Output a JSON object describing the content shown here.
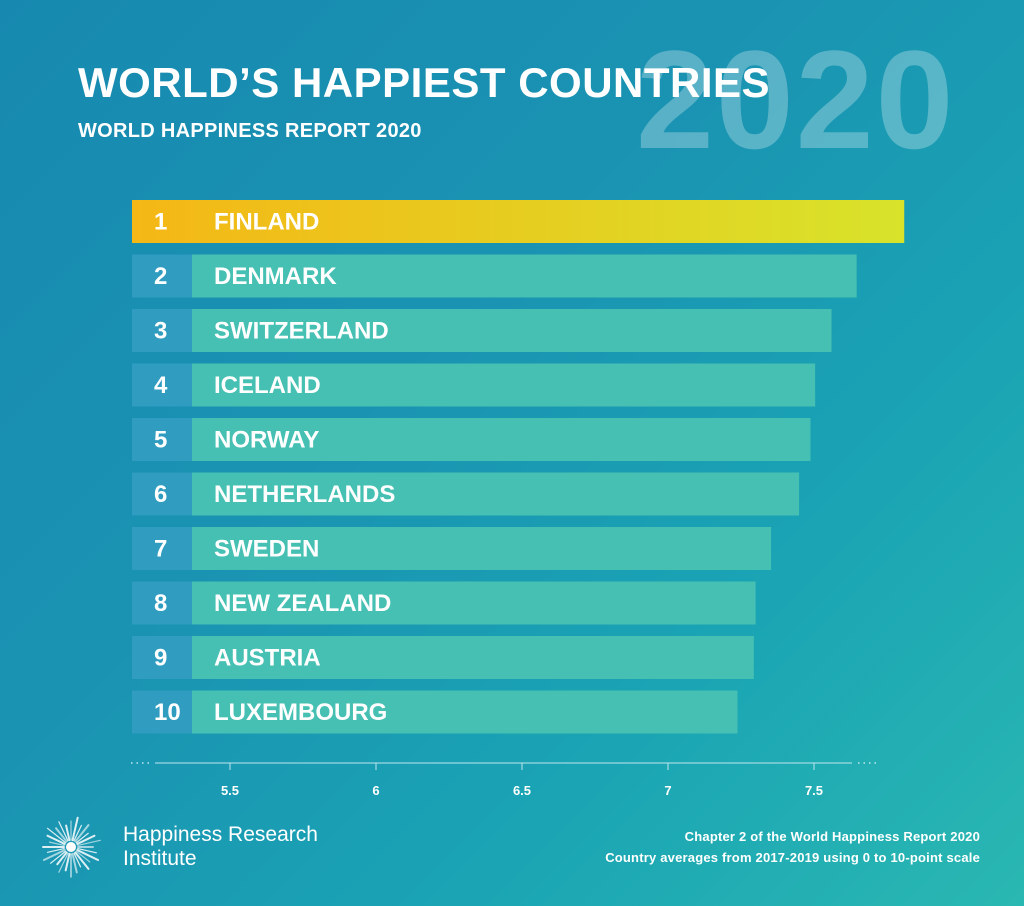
{
  "header": {
    "title": "WORLD’S HAPPIEST COUNTRIES",
    "subtitle": "WORLD HAPPINESS REPORT 2020",
    "background_year": "2020"
  },
  "chart_data": {
    "type": "bar",
    "orientation": "horizontal",
    "categories": [
      "FINLAND",
      "DENMARK",
      "SWITZERLAND",
      "ICELAND",
      "NORWAY",
      "NETHERLANDS",
      "SWEDEN",
      "NEW ZEALAND",
      "AUSTRIA",
      "LUXEMBOURG"
    ],
    "ranks": [
      "1",
      "2",
      "3",
      "4",
      "5",
      "6",
      "7",
      "8",
      "9",
      "10"
    ],
    "values": [
      7.809,
      7.646,
      7.56,
      7.504,
      7.488,
      7.449,
      7.353,
      7.3,
      7.294,
      7.238
    ],
    "xlim": [
      5.0,
      7.85
    ],
    "xticks": [
      "5.5",
      "6",
      "6.5",
      "7",
      "7.5"
    ],
    "highlight_index": 0,
    "colors": {
      "bar": "#45c0b2",
      "rank_cell": "#2f9cc0",
      "highlight_start": "#f5b716",
      "highlight_end": "#d8e32a",
      "axis": "#bfe6ee"
    }
  },
  "footer": {
    "brand_line1": "Happiness Research",
    "brand_line2": "Institute",
    "note_line1": "Chapter 2 of the World Happiness Report 2020",
    "note_line2": "Country averages from 2017-2019 using 0 to 10-point scale",
    "logo_icon": "starburst-logo-icon"
  }
}
